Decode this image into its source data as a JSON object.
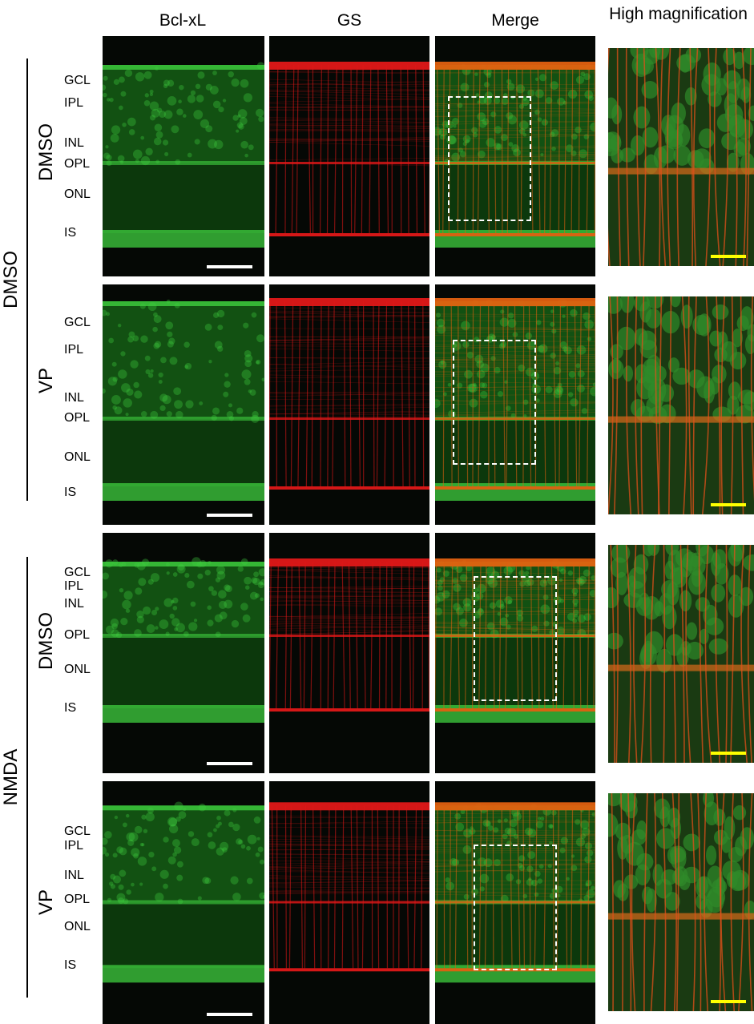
{
  "columns": {
    "c1": "Bcl-xL",
    "c2": "GS",
    "c3": "Merge",
    "c4": "High magnification"
  },
  "groups": {
    "g1": "DMSO",
    "g2": "NMDA"
  },
  "rows": [
    {
      "label": "DMSO",
      "layers": [
        "GCL",
        "IPL",
        "INL",
        "OPL",
        "ONL",
        "IS"
      ]
    },
    {
      "label": "VP",
      "layers": [
        "GCL",
        "IPL",
        "INL",
        "OPL",
        "ONL",
        "IS"
      ]
    },
    {
      "label": "DMSO",
      "layers": [
        "GCL",
        "IPL",
        "INL",
        "OPL",
        "ONL",
        "IS"
      ]
    },
    {
      "label": "VP",
      "layers": [
        "GCL",
        "IPL",
        "INL",
        "OPL",
        "ONL",
        "IS"
      ]
    }
  ],
  "colors": {
    "green": "#2fbf2f",
    "red": "#e01818",
    "merge": "#c8a020",
    "scalebar_white": "#ffffff",
    "scalebar_yellow": "#ffff00"
  }
}
